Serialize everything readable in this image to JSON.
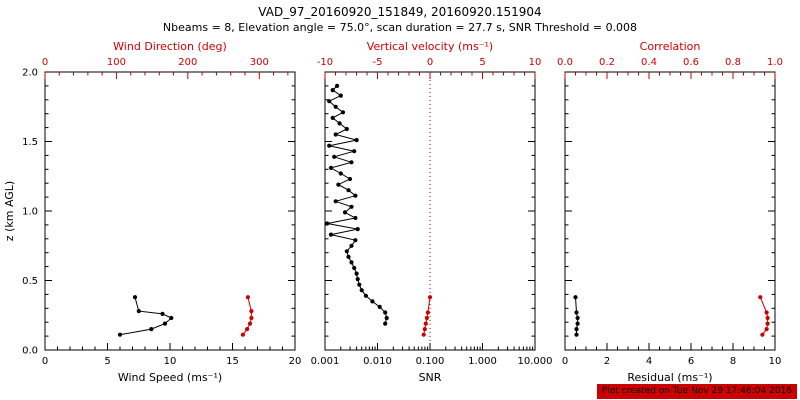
{
  "header": {
    "title": "VAD_97_20160920_151849, 20160920.151904",
    "subtitle": "Nbeams = 8, Elevation angle = 75.0°, scan duration = 27.7 s, SNR Threshold = 0.008"
  },
  "footer": {
    "created": "Plot created on Tue Nov 29 17:46:04 2016"
  },
  "colors": {
    "primary": "#000000",
    "secondary": "#cc0000",
    "background": "#ffffff",
    "footer_bg": "#cc0000",
    "footer_text": "#000000"
  },
  "y_axis": {
    "label": "z (km AGL)",
    "range": [
      0,
      2
    ],
    "ticks": [
      0,
      0.5,
      1,
      1.5,
      2
    ],
    "tick_labels": [
      "0.0",
      "0.5",
      "1.0",
      "1.5",
      "2.0"
    ],
    "minor_step": 0.1
  },
  "chart_data": [
    {
      "type": "line",
      "name": "wind",
      "bottom_axis": {
        "label": "Wind Speed (ms⁻¹)",
        "scale": "linear",
        "range": [
          0,
          20
        ],
        "ticks": [
          0,
          5,
          10,
          15,
          20
        ],
        "tick_labels": [
          "0",
          "5",
          "10",
          "15",
          "20"
        ],
        "minor_step": 1,
        "color": "#000000"
      },
      "top_axis": {
        "label": "Wind Direction (deg)",
        "scale": "linear",
        "range": [
          0,
          350
        ],
        "ticks": [
          0,
          100,
          200,
          300
        ],
        "tick_labels": [
          "0",
          "100",
          "200",
          "300"
        ],
        "minor_step": 20,
        "color": "#cc0000"
      },
      "series": [
        {
          "name": "wind-speed",
          "axis": "bottom",
          "color": "#000000",
          "points": [
            [
              6.0,
              0.11
            ],
            [
              8.5,
              0.15
            ],
            [
              9.6,
              0.19
            ],
            [
              10.1,
              0.23
            ],
            [
              9.4,
              0.26
            ],
            [
              7.5,
              0.28
            ],
            [
              7.2,
              0.38
            ]
          ]
        },
        {
          "name": "wind-direction",
          "axis": "top",
          "color": "#cc0000",
          "points": [
            [
              277,
              0.11
            ],
            [
              283,
              0.15
            ],
            [
              287,
              0.19
            ],
            [
              289,
              0.23
            ],
            [
              289,
              0.28
            ],
            [
              284,
              0.38
            ]
          ]
        }
      ]
    },
    {
      "type": "line",
      "name": "snr",
      "bottom_axis": {
        "label": "SNR",
        "scale": "log",
        "range": [
          0.001,
          10
        ],
        "ticks": [
          0.001,
          0.01,
          0.1,
          1,
          10
        ],
        "tick_labels": [
          "0.001",
          "0.010",
          "0.100",
          "1.000",
          "10.000"
        ],
        "color": "#000000"
      },
      "top_axis": {
        "label": "Vertical velocity (ms⁻¹)",
        "scale": "linear",
        "range": [
          -10,
          10
        ],
        "ticks": [
          -10,
          -5,
          0,
          5,
          10
        ],
        "tick_labels": [
          "-10",
          "-5",
          "0",
          "5",
          "10"
        ],
        "minor_step": 1,
        "color": "#cc0000"
      },
      "refline": {
        "axis": "top",
        "value": 0,
        "color": "#cc0000",
        "style": "dotted"
      },
      "series": [
        {
          "name": "snr-profile",
          "axis": "bottom",
          "color": "#000000",
          "points": [
            [
              0.014,
              0.19
            ],
            [
              0.015,
              0.23
            ],
            [
              0.014,
              0.27
            ],
            [
              0.011,
              0.31
            ],
            [
              0.008,
              0.35
            ],
            [
              0.006,
              0.39
            ],
            [
              0.005,
              0.43
            ],
            [
              0.0045,
              0.47
            ],
            [
              0.0042,
              0.51
            ],
            [
              0.004,
              0.55
            ],
            [
              0.0036,
              0.59
            ],
            [
              0.0032,
              0.63
            ],
            [
              0.0028,
              0.67
            ],
            [
              0.0026,
              0.71
            ],
            [
              0.0032,
              0.75
            ],
            [
              0.0038,
              0.79
            ],
            [
              0.0013,
              0.83
            ],
            [
              0.0042,
              0.87
            ],
            [
              0.0011,
              0.91
            ],
            [
              0.0038,
              0.95
            ],
            [
              0.0024,
              0.99
            ],
            [
              0.0032,
              1.03
            ],
            [
              0.0016,
              1.07
            ],
            [
              0.0038,
              1.11
            ],
            [
              0.0028,
              1.15
            ],
            [
              0.0018,
              1.19
            ],
            [
              0.003,
              1.23
            ],
            [
              0.002,
              1.27
            ],
            [
              0.0013,
              1.31
            ],
            [
              0.0032,
              1.35
            ],
            [
              0.0015,
              1.39
            ],
            [
              0.0036,
              1.43
            ],
            [
              0.0012,
              1.47
            ],
            [
              0.004,
              1.51
            ],
            [
              0.0016,
              1.55
            ],
            [
              0.0026,
              1.59
            ],
            [
              0.0019,
              1.63
            ],
            [
              0.0014,
              1.67
            ],
            [
              0.0022,
              1.71
            ],
            [
              0.0016,
              1.75
            ],
            [
              0.0012,
              1.79
            ],
            [
              0.002,
              1.83
            ],
            [
              0.0014,
              1.87
            ],
            [
              0.0017,
              1.9
            ]
          ]
        },
        {
          "name": "vertical-velocity",
          "axis": "top",
          "color": "#cc0000",
          "points": [
            [
              -0.6,
              0.11
            ],
            [
              -0.5,
              0.15
            ],
            [
              -0.4,
              0.19
            ],
            [
              -0.3,
              0.23
            ],
            [
              -0.2,
              0.27
            ],
            [
              0.0,
              0.38
            ]
          ]
        }
      ]
    },
    {
      "type": "line",
      "name": "residual",
      "bottom_axis": {
        "label": "Residual (ms⁻¹)",
        "scale": "linear",
        "range": [
          0,
          10
        ],
        "ticks": [
          0,
          2,
          4,
          6,
          8,
          10
        ],
        "tick_labels": [
          "0",
          "2",
          "4",
          "6",
          "8",
          "10"
        ],
        "minor_step": 0.5,
        "color": "#000000"
      },
      "top_axis": {
        "label": "Correlation",
        "scale": "linear",
        "range": [
          0,
          1
        ],
        "ticks": [
          0,
          0.2,
          0.4,
          0.6,
          0.8,
          1
        ],
        "tick_labels": [
          "0.0",
          "0.2",
          "0.4",
          "0.6",
          "0.8",
          "1.0"
        ],
        "minor_step": 0.05,
        "color": "#cc0000"
      },
      "series": [
        {
          "name": "residual",
          "axis": "bottom",
          "color": "#000000",
          "points": [
            [
              0.55,
              0.11
            ],
            [
              0.55,
              0.15
            ],
            [
              0.6,
              0.19
            ],
            [
              0.6,
              0.23
            ],
            [
              0.55,
              0.27
            ],
            [
              0.5,
              0.38
            ]
          ]
        },
        {
          "name": "correlation",
          "axis": "top",
          "color": "#cc0000",
          "points": [
            [
              0.94,
              0.11
            ],
            [
              0.96,
              0.15
            ],
            [
              0.965,
              0.19
            ],
            [
              0.965,
              0.23
            ],
            [
              0.96,
              0.27
            ],
            [
              0.93,
              0.38
            ]
          ]
        }
      ]
    }
  ]
}
